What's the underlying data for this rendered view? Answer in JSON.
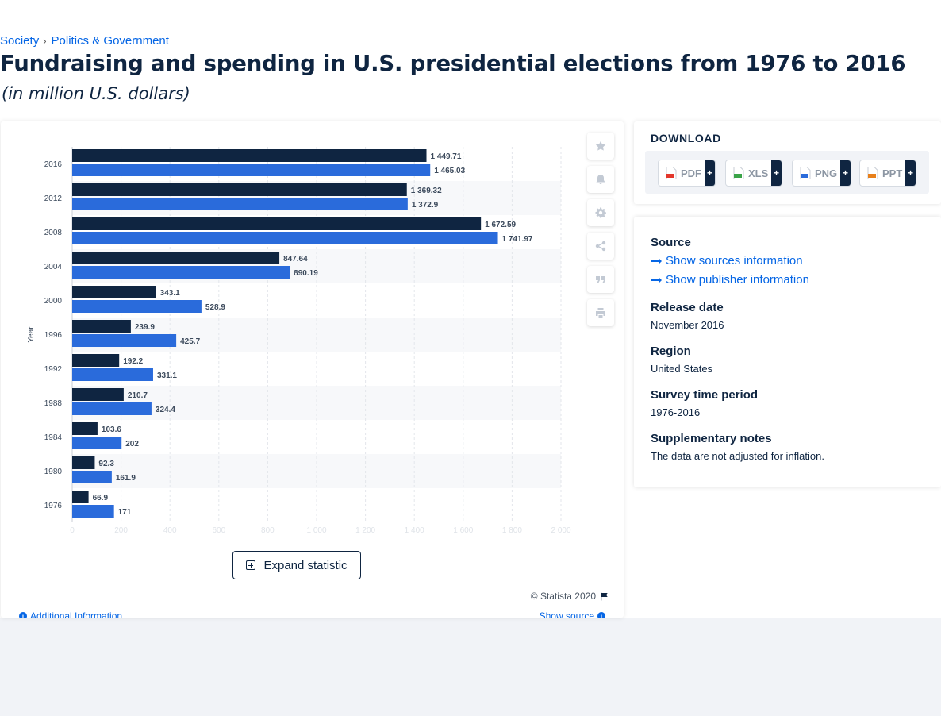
{
  "breadcrumb": {
    "items": [
      "Society",
      "Politics & Government"
    ],
    "separator": "›"
  },
  "title": "Fundraising and spending in U.S. presidential elections from 1976 to 2016",
  "subtitle": "(in million U.S. dollars)",
  "chart_data": {
    "type": "bar",
    "orientation": "horizontal",
    "categories": [
      "2016",
      "2012",
      "2008",
      "2004",
      "2000",
      "1996",
      "1992",
      "1988",
      "1984",
      "1980",
      "1976"
    ],
    "series": [
      {
        "color": "#0f2541",
        "values": [
          1449.71,
          1369.32,
          1672.59,
          847.64,
          343.1,
          239.9,
          192.2,
          210.7,
          103.6,
          92.3,
          66.9
        ]
      },
      {
        "color": "#2a6bdb",
        "values": [
          1465.03,
          1372.9,
          1741.97,
          890.19,
          528.9,
          425.7,
          331.1,
          324.4,
          202,
          161.9,
          171
        ]
      }
    ],
    "data_labels": [
      [
        "1 449.71",
        "1 369.32",
        "1 672.59",
        "847.64",
        "343.1",
        "239.9",
        "192.2",
        "210.7",
        "103.6",
        "92.3",
        "66.9"
      ],
      [
        "1 465.03",
        "1 372.9",
        "1 741.97",
        "890.19",
        "528.9",
        "425.7",
        "331.1",
        "324.4",
        "202",
        "161.9",
        "171"
      ]
    ],
    "ylabel": "Year",
    "xlim": [
      0,
      2000
    ],
    "x_ticks": [
      "0",
      "200",
      "400",
      "600",
      "800",
      "1 000",
      "1 200",
      "1 400",
      "1 600",
      "1 800",
      "2 000"
    ],
    "grid": true
  },
  "tools": [
    "star-icon",
    "bell-icon",
    "gear-icon",
    "share-icon",
    "quote-icon",
    "print-icon"
  ],
  "expand_label": "Expand statistic",
  "copyright": "© Statista 2020",
  "additional_info": "Additional Information",
  "show_source": "Show source",
  "download": {
    "title": "DOWNLOAD",
    "buttons": [
      {
        "label": "PDF",
        "plus": "+",
        "icon_color": "#e3372b"
      },
      {
        "label": "XLS",
        "plus": "+",
        "icon_color": "#3aa348"
      },
      {
        "label": "PNG",
        "plus": "+",
        "icon_color": "#2a6bdb"
      },
      {
        "label": "PPT",
        "plus": "+",
        "icon_color": "#e8801b"
      }
    ]
  },
  "info": {
    "source_heading": "Source",
    "show_sources": "Show sources information",
    "show_publisher": "Show publisher information",
    "release_heading": "Release date",
    "release_value": "November 2016",
    "region_heading": "Region",
    "region_value": "United States",
    "survey_heading": "Survey time period",
    "survey_value": "1976-2016",
    "notes_heading": "Supplementary notes",
    "notes_value": "The data are not adjusted for inflation."
  }
}
